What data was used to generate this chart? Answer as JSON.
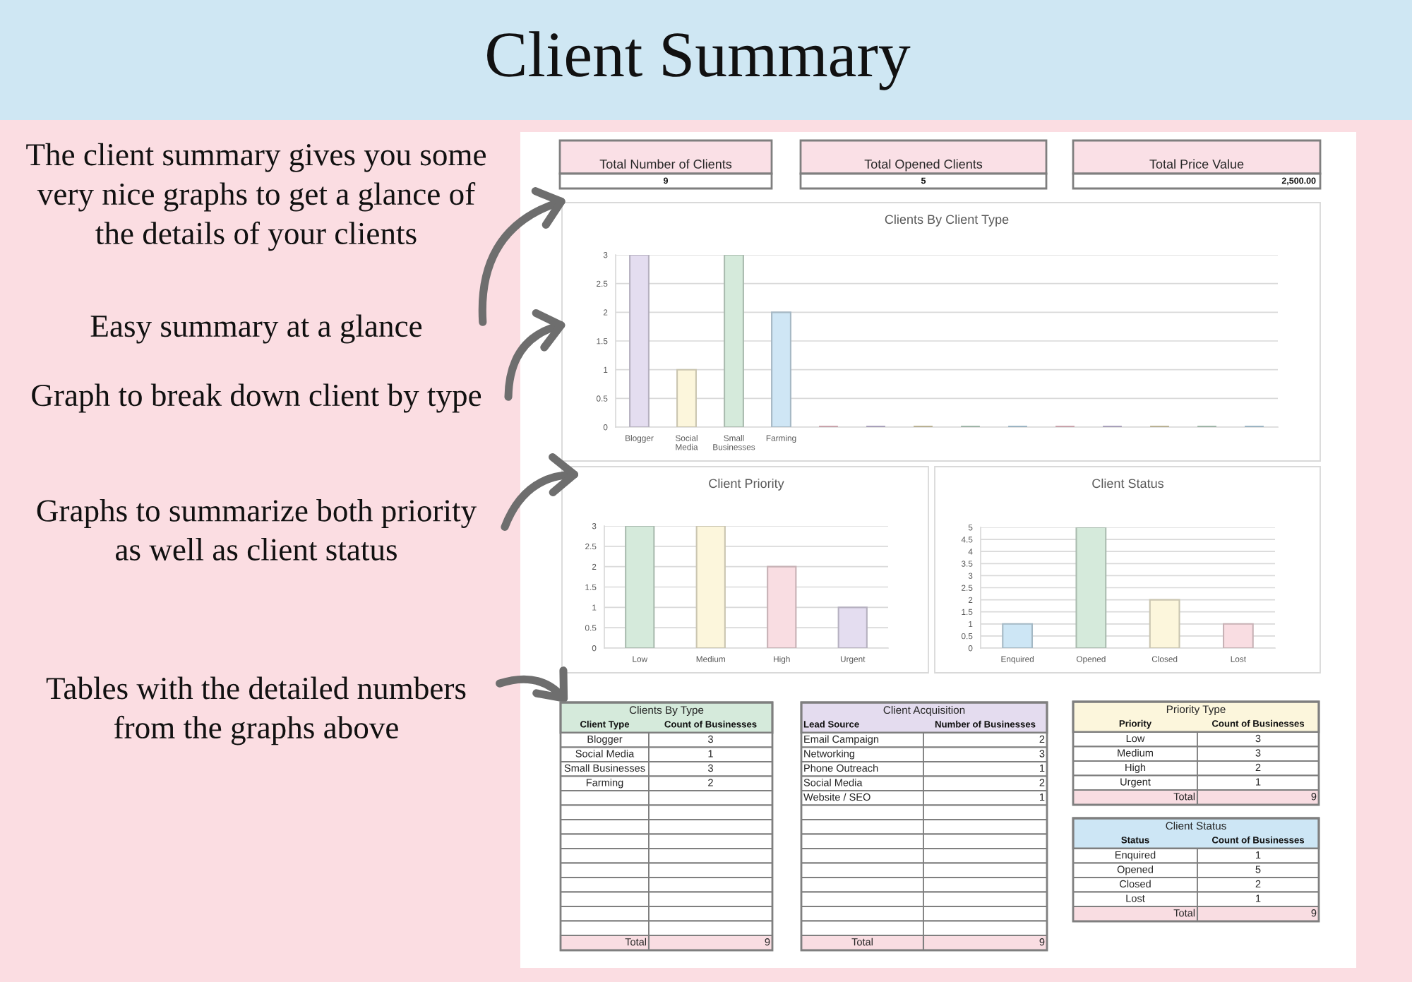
{
  "chart_data": [
    {
      "type": "other",
      "title": "Client Summary",
      "annotations": [
        "The client summary gives you some\nvery nice graphs to get a glance of\nthe details of your clients",
        "Easy summary at a glance",
        "Graph to break down client by type",
        "Graphs to summarize both priority\nas well as client status",
        "Tables with the detailed numbers\nfrom the graphs above"
      ]
    },
    {
      "type": "other",
      "categories": [
        "Total Number of Clients",
        "Total Opened Clients",
        "Total Price Value"
      ],
      "values": [
        9,
        5,
        2500
      ],
      "value_labels": [
        "9",
        "5",
        "2,500.00"
      ]
    },
    {
      "type": "bar",
      "title": "Clients By Client Type",
      "categories": [
        "Blogger",
        "Social Media",
        "Small Businesses",
        "Farming",
        null,
        null,
        null,
        null,
        null,
        null,
        null,
        null,
        null,
        null
      ],
      "values": [
        3,
        1,
        3,
        2,
        0,
        0,
        0,
        0,
        0,
        0,
        0,
        0,
        0,
        0
      ],
      "colors": [
        "#e4ddf0",
        "#fcf6dc",
        "#d5eadb",
        "#cfe6f5",
        "#c9a3ab",
        "#a8a0ba",
        "#b9b193",
        "#9eb5a7",
        "#9bb4c3",
        "#c9a3ab",
        "#a8a0ba",
        "#b9b193",
        "#9eb5a7",
        "#9bb4c3"
      ],
      "ylim": [
        0,
        3
      ],
      "yticks": [
        0,
        0.5,
        1,
        1.5,
        2,
        2.5,
        3
      ],
      "grid": "y"
    },
    {
      "type": "bar",
      "title": "Client Priority",
      "categories": [
        "Low",
        "Medium",
        "High",
        "Urgent"
      ],
      "values": [
        3,
        3,
        2,
        1
      ],
      "colors": [
        "#d5eadb",
        "#fcf6dc",
        "#f9dde2",
        "#e4ddf0"
      ],
      "ylim": [
        0,
        3
      ],
      "yticks": [
        0,
        0.5,
        1,
        1.5,
        2,
        2.5,
        3
      ],
      "grid": "y"
    },
    {
      "type": "bar",
      "title": "Client Status",
      "categories": [
        "Enquired",
        "Opened",
        "Closed",
        "Lost"
      ],
      "values": [
        1,
        5,
        2,
        1
      ],
      "colors": [
        "#cde6f5",
        "#d5eadb",
        "#fcf6dc",
        "#f9dde2"
      ],
      "ylim": [
        0,
        5
      ],
      "yticks": [
        0,
        0.5,
        1,
        1.5,
        2,
        2.5,
        3,
        3.5,
        4,
        4.5,
        5
      ],
      "grid": "y"
    },
    {
      "type": "other",
      "title": "Clients By Type",
      "xlabel": "Client Type",
      "ylabel": "Count of Businesses",
      "categories": [
        "Blogger",
        "Social Media",
        "Small Businesses",
        "Farming",
        null,
        null,
        null,
        null,
        null,
        null,
        null,
        null,
        null,
        null
      ],
      "values": [
        3,
        1,
        3,
        2,
        null,
        null,
        null,
        null,
        null,
        null,
        null,
        null,
        null,
        null
      ],
      "data_labels": true,
      "annotations": [
        "Total"
      ],
      "totals": [
        "9"
      ]
    },
    {
      "type": "other",
      "title": "Client Acquisition",
      "xlabel": "Lead Source",
      "ylabel": "Number of Businesses",
      "categories": [
        "Email Campaign",
        "Networking",
        "Phone Outreach",
        "Social Media",
        "Website / SEO",
        null,
        null,
        null,
        null,
        null,
        null,
        null,
        null,
        null
      ],
      "values": [
        2,
        3,
        1,
        2,
        1,
        null,
        null,
        null,
        null,
        null,
        null,
        null,
        null,
        null
      ],
      "data_labels": true,
      "annotations": [
        "Total"
      ],
      "totals": [
        "9"
      ]
    },
    {
      "type": "other",
      "title": "Priority Type",
      "xlabel": "Priority",
      "ylabel": "Count of Businesses",
      "categories": [
        "Low",
        "Medium",
        "High",
        "Urgent"
      ],
      "values": [
        3,
        3,
        2,
        1
      ],
      "data_labels": true,
      "annotations": [
        "Total"
      ],
      "totals": [
        "9"
      ]
    },
    {
      "type": "other",
      "title": "Client Status",
      "xlabel": "Status",
      "ylabel": "Count of Businesses",
      "categories": [
        "Enquired",
        "Opened",
        "Closed",
        "Lost"
      ],
      "values": [
        1,
        5,
        2,
        1
      ],
      "data_labels": true,
      "annotations": [
        "Total"
      ],
      "totals": [
        "9"
      ]
    }
  ]
}
